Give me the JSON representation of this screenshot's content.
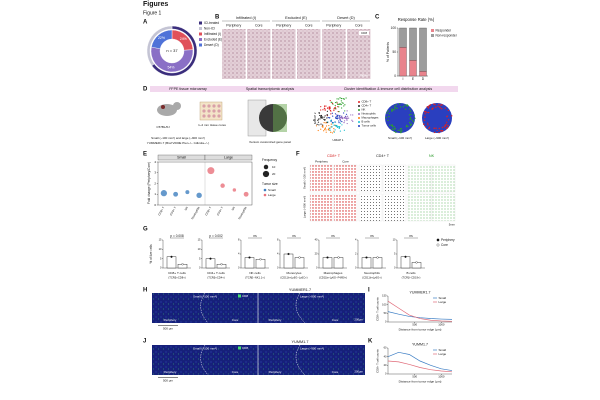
{
  "header": {
    "title": "Figures",
    "figure": "Figure 1"
  },
  "panel_labels": [
    "A",
    "B",
    "C",
    "D",
    "E",
    "F",
    "G",
    "H",
    "I",
    "J",
    "K"
  ],
  "panel_a": {
    "type": "donut",
    "center_label": "n = 37",
    "rings": [
      {
        "categories": [
          "ICI-treated",
          "Non-ICI"
        ],
        "colors": [
          "#3a2d7c",
          "#c4c4d4"
        ],
        "values": [
          65,
          35
        ]
      },
      {
        "categories": [
          "Infiltrated (I)",
          "Excluded (E)",
          "Desert (D)"
        ],
        "colors": [
          "#e0505a",
          "#8a6fc6",
          "#4f72d8"
        ],
        "values": [
          24,
          54,
          22
        ],
        "value_labels": [
          "24%",
          "54%",
          "22%"
        ]
      }
    ]
  },
  "panel_b": {
    "groups": [
      {
        "title": "Infiltrated (I)",
        "columns": [
          "Periphery",
          "Core"
        ]
      },
      {
        "title": "Excluded (E)",
        "columns": [
          "Periphery",
          "Core"
        ]
      },
      {
        "title": "Desert (D)",
        "columns": [
          "Periphery",
          "Core"
        ]
      }
    ],
    "stain": "CD8",
    "scale": "200μm"
  },
  "panel_c": {
    "type": "bar",
    "stacked": true,
    "title": "Response Rate (%)",
    "y_label": "% of Patients",
    "categories": [
      "I",
      "E",
      "D"
    ],
    "series": [
      {
        "name": "Responder",
        "color": "#e9838c",
        "values": [
          60,
          33,
          10
        ]
      },
      {
        "name": "Non-responder",
        "color": "#9c9c9c",
        "values": [
          40,
          67,
          90
        ]
      }
    ],
    "ylim": [
      0,
      100
    ],
    "yticks": [
      0,
      50,
      100
    ]
  },
  "panel_d": {
    "steps": [
      "FFPE tissue microarray",
      "Spatial transcriptomic analysis",
      "Cluster identification & immune cell distribution analysis"
    ],
    "annotations": [
      "C57BL/6J",
      "Small (~100 mm³) and large (~900 mm³)",
      "YUMMER1.7 (Braf V600E Pten−/− Cdkn2a−/−)",
      "1~2 mm tissue cores",
      "Xenium customized gene panel",
      "UMAP 1",
      "UMAP 2",
      "Small (~100 mm³)",
      "Large (~900 mm³)"
    ],
    "cell_types": [
      {
        "name": "CD8+ T",
        "color": "#e02020"
      },
      {
        "name": "CD4+ T",
        "color": "#222222"
      },
      {
        "name": "NK",
        "color": "#2ca02c"
      },
      {
        "name": "Neutrophils",
        "color": "#9467bd"
      },
      {
        "name": "Macrophages",
        "color": "#ff7f0e"
      },
      {
        "name": "B cells",
        "color": "#17becf"
      },
      {
        "name": "Tumor cells",
        "color": "#1f3fbf"
      }
    ]
  },
  "panel_e": {
    "type": "scatter",
    "groups": [
      "Small",
      "Large"
    ],
    "y_label": "Fold change (Periphery/Core)",
    "categories": [
      "CD8+ T",
      "CD4+ T",
      "NK",
      "Neutrophils"
    ],
    "series": [
      {
        "name": "Small",
        "color": "#3f7fbf",
        "values": [
          1.1,
          1.0,
          1.2,
          0.9
        ],
        "sizes": [
          20,
          12,
          8,
          15
        ]
      },
      {
        "name": "Large",
        "color": "#e8707a",
        "values": [
          3.2,
          1.8,
          1.4,
          1.0
        ],
        "sizes": [
          25,
          10,
          6,
          12
        ]
      }
    ],
    "ylim": [
      0,
      4
    ],
    "yticks": [
      0,
      1,
      2,
      3,
      4
    ],
    "size_legend": {
      "title": "Frequency",
      "values": [
        10,
        20
      ]
    },
    "color_legend_title": "Tumor size"
  },
  "panel_f": {
    "markers": [
      "CD8+ T",
      "CD4+ T",
      "NK"
    ],
    "columns": [
      "Periphery",
      "Core"
    ],
    "rows": [
      "Small (~100 mm³)",
      "Large (~900 mm³)"
    ],
    "colors": [
      "#d42020",
      "#222222",
      "#2a9a2a"
    ],
    "scale": "5mm"
  },
  "panel_g": {
    "type": "bar",
    "y_label": "% of live cells",
    "series": [
      {
        "name": "Periphery",
        "color": "#111111"
      },
      {
        "name": "Core",
        "color": "#ffffff"
      }
    ],
    "plots": [
      {
        "title": "CD8+ T cells",
        "subtitle": "(TCRβ+CD8+)",
        "stat": "p = 0.008",
        "values": [
          6,
          2
        ],
        "ylim": [
          0,
          15
        ],
        "yticks": [
          0,
          5,
          10,
          15
        ]
      },
      {
        "title": "CD4+ T cells",
        "subtitle": "(TCRβ+CD4+)",
        "stat": "p = 0.002",
        "values": [
          5,
          2
        ],
        "ylim": [
          0,
          15
        ],
        "yticks": [
          0,
          5,
          10,
          15
        ]
      },
      {
        "title": "NK cells",
        "subtitle": "(TCRβ−NK1.1+)",
        "stat": "ns",
        "values": [
          3,
          2.5
        ],
        "ylim": [
          0,
          8
        ],
        "yticks": [
          0,
          4,
          8
        ]
      },
      {
        "title": "Monocytes",
        "subtitle": "(CD11b+Ly6G−Ly6C+)",
        "stat": "ns",
        "values": [
          4,
          3
        ],
        "ylim": [
          0,
          8
        ],
        "yticks": [
          0,
          4,
          8
        ]
      },
      {
        "title": "Macrophages",
        "subtitle": "(CD11b+Ly6G−F4/80+)",
        "stat": "ns",
        "values": [
          15,
          15
        ],
        "ylim": [
          0,
          40
        ],
        "yticks": [
          0,
          20,
          40
        ]
      },
      {
        "title": "Neutrophils",
        "subtitle": "(CD11b+Ly6G+)",
        "stat": "ns",
        "values": [
          1.5,
          1.5
        ],
        "ylim": [
          0,
          4
        ],
        "yticks": [
          0,
          2,
          4
        ]
      },
      {
        "title": "B cells",
        "subtitle": "(TCRβ−CD19+)",
        "stat": "ns",
        "values": [
          4,
          2
        ],
        "ylim": [
          0,
          10
        ],
        "yticks": [
          0,
          5,
          10
        ]
      }
    ]
  },
  "panel_h": {
    "title": "YUMMER1.7",
    "sizes": [
      "Small (~100 mm³)",
      "Large (~900 mm³)"
    ],
    "regions": [
      "Periphery",
      "Core"
    ],
    "stain": "CD8",
    "scale_bars": [
      "500 μm",
      "200μm"
    ]
  },
  "panel_i": {
    "type": "line",
    "title": "YUMMER1.7",
    "x_label": "Distance from tumor edge (μm)",
    "y_label": "CD8+ T cell counts",
    "x": [
      0,
      200,
      400,
      600,
      800,
      1000,
      1200
    ],
    "series": [
      {
        "name": "Small",
        "color": "#3b7dc4",
        "values": [
          60,
          45,
          32,
          25,
          20,
          17,
          15
        ]
      },
      {
        "name": "Large",
        "color": "#e06a78",
        "values": [
          120,
          80,
          40,
          20,
          10,
          6,
          4
        ]
      }
    ],
    "xlim": [
      0,
      1200
    ],
    "xticks": [
      500,
      1000
    ],
    "ylim": [
      0,
      150
    ],
    "yticks": [
      0,
      50,
      100,
      150
    ]
  },
  "panel_j": {
    "title": "YUMM1.7",
    "sizes": [
      "Small (~100 mm³)",
      "Large (~900 mm³)"
    ],
    "regions": [
      "Periphery",
      "Core"
    ],
    "stain": "CD8",
    "scale_bars": [
      "500 μm",
      "200μm"
    ]
  },
  "panel_k": {
    "type": "line",
    "title": "YUMM1.7",
    "x_label": "Distance from tumor edge (μm)",
    "y_label": "CD8+ T cell counts",
    "x": [
      0,
      200,
      400,
      600,
      800,
      1000,
      1200
    ],
    "series": [
      {
        "name": "Small",
        "color": "#3b7dc4",
        "values": [
          40,
          50,
          45,
          30,
          20,
          12,
          8
        ]
      },
      {
        "name": "Large",
        "color": "#e06a78",
        "values": [
          30,
          28,
          22,
          15,
          10,
          7,
          5
        ]
      }
    ],
    "xlim": [
      0,
      1200
    ],
    "xticks": [
      500,
      1000
    ],
    "ylim": [
      0,
      60
    ],
    "yticks": [
      0,
      20,
      40,
      60
    ]
  }
}
